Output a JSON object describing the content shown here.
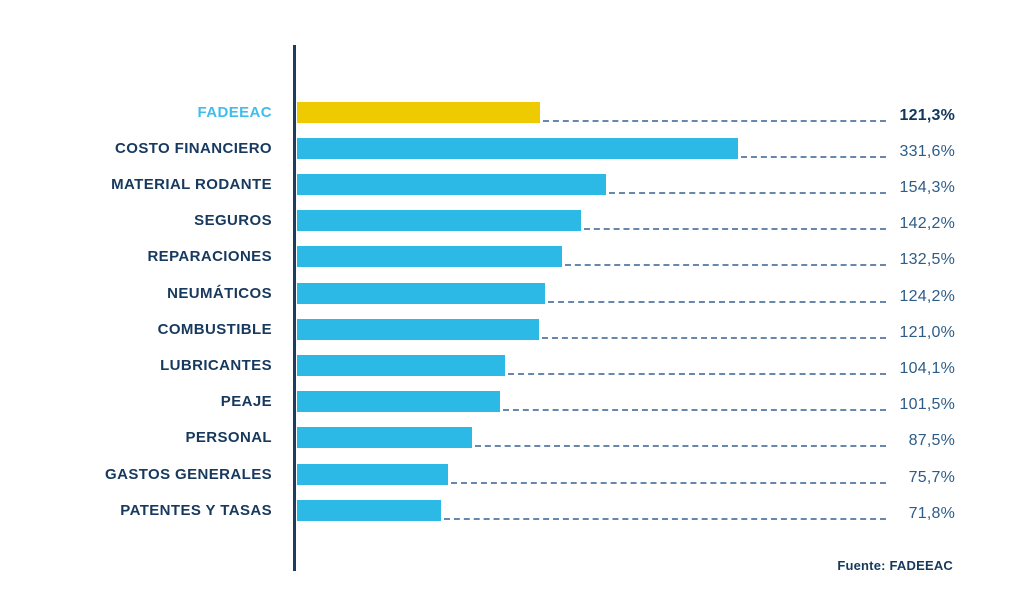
{
  "colors": {
    "bar": "#2CB9E6",
    "bar_highlight": "#EDCB00",
    "axis_line": "#1C3D61",
    "category_label": "#17395E",
    "category_label_highlight": "#3FBDEC",
    "value_label": "#2D5C87",
    "value_label_highlight": "#12365C",
    "leader_line": "#6787AC",
    "source_text": "#17395E",
    "background": "#FFFFFF"
  },
  "chart_data": {
    "type": "bar",
    "orientation": "horizontal",
    "unit": "%",
    "title": "",
    "xlabel": "",
    "ylabel": "",
    "legend_position": "none",
    "grid": false,
    "highlight_category": "FADEEAC",
    "categories": [
      "FADEEAC",
      "COSTO FINANCIERO",
      "MATERIAL RODANTE",
      "SEGUROS",
      "REPARACIONES",
      "NEUMÁTICOS",
      "COMBUSTIBLE",
      "LUBRICANTES",
      "PEAJE",
      "PERSONAL",
      "GASTOS GENERALES",
      "PATENTES Y TASAS"
    ],
    "values": [
      121.3,
      331.6,
      154.3,
      142.2,
      132.5,
      124.2,
      121.0,
      104.1,
      101.5,
      87.5,
      75.7,
      71.8
    ],
    "rows": [
      {
        "label": "FADEEAC",
        "value": 121.3,
        "value_display": "121,3%",
        "highlight": true
      },
      {
        "label": "COSTO FINANCIERO",
        "value": 331.6,
        "value_display": "331,6%",
        "highlight": false
      },
      {
        "label": "MATERIAL RODANTE",
        "value": 154.3,
        "value_display": "154,3%",
        "highlight": false
      },
      {
        "label": "SEGUROS",
        "value": 142.2,
        "value_display": "142,2%",
        "highlight": false
      },
      {
        "label": "REPARACIONES",
        "value": 132.5,
        "value_display": "132,5%",
        "highlight": false
      },
      {
        "label": "NEUMÁTICOS",
        "value": 124.2,
        "value_display": "124,2%",
        "highlight": false
      },
      {
        "label": "COMBUSTIBLE",
        "value": 121.0,
        "value_display": "121,0%",
        "highlight": false
      },
      {
        "label": "LUBRICANTES",
        "value": 104.1,
        "value_display": "104,1%",
        "highlight": false
      },
      {
        "label": "PEAJE",
        "value": 101.5,
        "value_display": "101,5%",
        "highlight": false
      },
      {
        "label": "PERSONAL",
        "value": 87.5,
        "value_display": "87,5%",
        "highlight": false
      },
      {
        "label": "GASTOS GENERALES",
        "value": 75.7,
        "value_display": "75,7%",
        "highlight": false
      },
      {
        "label": "PATENTES Y TASAS",
        "value": 71.8,
        "value_display": "71,8%",
        "highlight": false
      }
    ],
    "source": "Fuente: FADEEAC"
  }
}
